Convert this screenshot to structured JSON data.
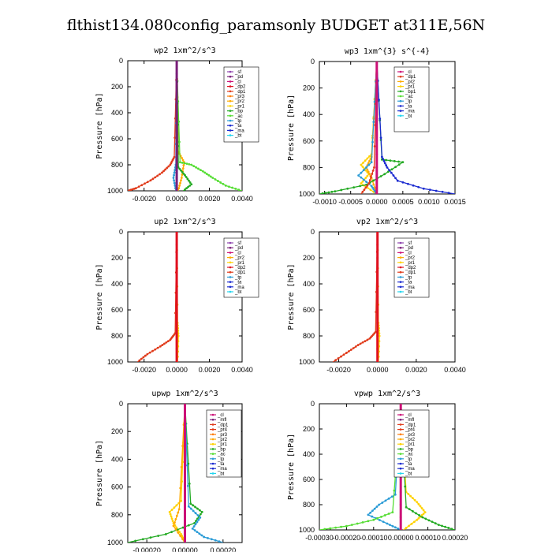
{
  "figure": {
    "title": "flthist134.080config_paramsonly  BUDGET at311E,56N"
  },
  "colors": {
    "sf": "#8e44ad",
    "pd": "#7a1f7a",
    "cl": "#cc1177",
    "mfl": "#7a1f7a",
    "dp2": "#e01020",
    "dp1": "#e03a1a",
    "pr4": "#e03a1a",
    "pr3": "#ff7a00",
    "pr2": "#ffaa00",
    "pr1": "#ffd200",
    "bp": "#22aa22",
    "bp1": "#22aa22",
    "ac": "#55dd33",
    "tp": "#2a9bd6",
    "ta": "#1a2ad0",
    "ma": "#1a2ad0",
    "bt": "#22d5ee"
  },
  "chart_data": [
    {
      "type": "line",
      "title": "wp2   1xm^2/s^3",
      "ylabel": "Pressure  [hPa]",
      "xlim": [
        -0.003,
        0.004
      ],
      "ylim": [
        1000,
        0
      ],
      "xticks": [
        "-0.0020",
        "0.0000",
        "0.0020",
        "0.0040"
      ],
      "yticks": [
        "0",
        "200",
        "400",
        "600",
        "800",
        "1000"
      ],
      "legend": [
        "_sf",
        "_pd",
        "_cl",
        "_dp2",
        "_dp1",
        "_pr3",
        "_pr2",
        "_pr1",
        "_bp",
        "_ac",
        "_tp",
        "_ta",
        "_ma",
        "_bt"
      ],
      "series": [
        {
          "name": "_dp1",
          "x": [
            0,
            -0.00015,
            -0.0004,
            -0.0009,
            -0.0016,
            -0.0025,
            -0.003
          ],
          "y": [
            0,
            740,
            800,
            860,
            920,
            980,
            1000
          ]
        },
        {
          "name": "_pr2",
          "x": [
            0,
            0.0001,
            0.00045,
            0.0003,
            8e-05
          ],
          "y": [
            0,
            700,
            780,
            900,
            1000
          ]
        },
        {
          "name": "_ac",
          "x": [
            0,
            0.0002,
            0.0009,
            0.0016,
            0.0022,
            0.003,
            0.004
          ],
          "y": [
            0,
            780,
            800,
            850,
            900,
            960,
            1000
          ]
        },
        {
          "name": "_bp",
          "x": [
            0,
            0.0001,
            0.0005,
            0.0009,
            0.0004
          ],
          "y": [
            0,
            820,
            880,
            950,
            1000
          ]
        },
        {
          "name": "_tp",
          "x": [
            0,
            -6e-05,
            -0.0002,
            -5e-05
          ],
          "y": [
            0,
            800,
            900,
            1000
          ]
        },
        {
          "name": "_pd",
          "x": [
            0,
            0,
            0
          ],
          "y": [
            0,
            500,
            1000
          ]
        }
      ]
    },
    {
      "type": "line",
      "title": "wp3   1xm^{3} s^{-4}",
      "ylabel": "Pressure  [hPa]",
      "xlim": [
        -0.0011,
        0.0015
      ],
      "ylim": [
        1000,
        0
      ],
      "xticks": [
        "-0.0010",
        "-0.0005",
        "0.0000",
        "0.0005",
        "0.0010",
        "0.0015"
      ],
      "yticks": [
        "0",
        "200",
        "400",
        "600",
        "800",
        "1000"
      ],
      "legend": [
        "_cl",
        "_dp1",
        "_pr2",
        "_pr1",
        "_bp1",
        "_ac",
        "_tp",
        "_ta",
        "_ma",
        "_bt"
      ],
      "series": [
        {
          "name": "_pr1",
          "x": [
            0,
            -0.0001,
            -0.0003,
            -0.00015,
            -0.0003,
            0
          ],
          "y": [
            0,
            700,
            780,
            850,
            920,
            1000
          ]
        },
        {
          "name": "_pr2",
          "x": [
            0,
            -0.0001,
            -0.0002,
            -0.0001,
            0
          ],
          "y": [
            0,
            720,
            800,
            880,
            1000
          ]
        },
        {
          "name": "_bp1",
          "x": [
            0,
            0.0001,
            0.0005,
            0.00015,
            -0.0002,
            -0.0008,
            -0.0011
          ],
          "y": [
            0,
            740,
            760,
            850,
            930,
            980,
            1000
          ]
        },
        {
          "name": "_ta",
          "x": [
            0,
            0.0001,
            0.0002,
            0.0004,
            0.0009,
            0.0015
          ],
          "y": [
            0,
            720,
            800,
            900,
            960,
            1000
          ]
        },
        {
          "name": "_tp",
          "x": [
            0,
            -0.0001,
            -0.00035,
            -0.0001,
            0
          ],
          "y": [
            0,
            760,
            860,
            940,
            1000
          ]
        },
        {
          "name": "_dp1",
          "x": [
            0,
            -5e-05,
            -0.00015,
            -0.0003
          ],
          "y": [
            0,
            800,
            920,
            1000
          ]
        },
        {
          "name": "_cl",
          "x": [
            0,
            0,
            0
          ],
          "y": [
            0,
            500,
            1000
          ]
        }
      ]
    },
    {
      "type": "line",
      "title": "up2   1xm^2/s^3",
      "ylabel": "Pressure  [hPa]",
      "xlim": [
        -0.003,
        0.004
      ],
      "ylim": [
        1000,
        0
      ],
      "xticks": [
        "-0.0020",
        "0.0000",
        "0.0020",
        "0.0040"
      ],
      "yticks": [
        "0",
        "200",
        "400",
        "600",
        "800",
        "1000"
      ],
      "legend": [
        "_sf",
        "_pd",
        "_cl",
        "_pr2",
        "_pr1",
        "_dp2",
        "_dp1",
        "_tp",
        "_ta",
        "_ma",
        "_bt"
      ],
      "series": [
        {
          "name": "_dp1",
          "x": [
            0,
            -0.0001,
            -0.0004,
            -0.001,
            -0.0018,
            -0.0024
          ],
          "y": [
            0,
            780,
            830,
            880,
            940,
            1000
          ]
        },
        {
          "name": "_pr1",
          "x": [
            0,
            5e-05,
            0.0001,
            5e-05
          ],
          "y": [
            0,
            700,
            800,
            1000
          ]
        },
        {
          "name": "_dp2",
          "x": [
            0,
            0,
            0
          ],
          "y": [
            0,
            500,
            1000
          ]
        }
      ]
    },
    {
      "type": "line",
      "title": "vp2   1xm^2/s^3",
      "ylabel": "Pressure  [hPa]",
      "xlim": [
        -0.003,
        0.004
      ],
      "ylim": [
        1000,
        0
      ],
      "xticks": [
        "-0.0020",
        "0.0000",
        "0.0020",
        "0.0040"
      ],
      "yticks": [
        "0",
        "200",
        "400",
        "600",
        "800",
        "1000"
      ],
      "legend": [
        "_sf",
        "_pd",
        "_cl",
        "_pr2",
        "_pr1",
        "_dp2",
        "_dp1",
        "_tp",
        "_ta",
        "_ma",
        "_bt"
      ],
      "series": [
        {
          "name": "_dp1",
          "x": [
            0,
            -0.0001,
            -0.0004,
            -0.001,
            -0.0016,
            -0.0023
          ],
          "y": [
            0,
            770,
            820,
            870,
            930,
            1000
          ]
        },
        {
          "name": "_pr1",
          "x": [
            0,
            5e-05,
            0.0001,
            5e-05
          ],
          "y": [
            0,
            700,
            800,
            1000
          ]
        },
        {
          "name": "_dp2",
          "x": [
            0,
            0,
            0
          ],
          "y": [
            0,
            500,
            1000
          ]
        }
      ]
    },
    {
      "type": "line",
      "title": "upwp   1xm^2/s^3",
      "ylabel": "Pressure  [hPa]",
      "xlim": [
        -0.0003,
        0.0003
      ],
      "ylim": [
        1000,
        0
      ],
      "xticks": [
        "-0.00020",
        "0.00000",
        "0.00020"
      ],
      "yticks": [
        "0",
        "200",
        "400",
        "600",
        "800",
        "1000"
      ],
      "legend": [
        "_cl",
        "_mfl",
        "_dp1",
        "_pr4",
        "_pr3",
        "_pr2",
        "_pr1",
        "_bp",
        "_ac",
        "_tp",
        "_ta",
        "_ma",
        "_bt"
      ],
      "series": [
        {
          "name": "_pr1",
          "x": [
            0,
            -2e-05,
            -8e-05,
            -6e-05,
            -2e-05,
            0
          ],
          "y": [
            0,
            700,
            780,
            860,
            940,
            1000
          ]
        },
        {
          "name": "_bp",
          "x": [
            0,
            3e-05,
            9e-05,
            5e-05,
            -0.0001,
            -0.0003
          ],
          "y": [
            0,
            720,
            780,
            860,
            940,
            1000
          ]
        },
        {
          "name": "_tp",
          "x": [
            0,
            2e-05,
            8e-05,
            4e-05,
            0.0001,
            0.0002
          ],
          "y": [
            0,
            740,
            820,
            900,
            960,
            1000
          ]
        },
        {
          "name": "_pr2",
          "x": [
            0,
            -3e-05,
            -6e-05,
            0
          ],
          "y": [
            0,
            760,
            880,
            1000
          ]
        },
        {
          "name": "_cl",
          "x": [
            0,
            0,
            0
          ],
          "y": [
            0,
            500,
            1000
          ]
        }
      ]
    },
    {
      "type": "line",
      "title": "vpwp   1xm^2/s^3",
      "ylabel": "Pressure  [hPa]",
      "xlim": [
        -0.0003,
        0.0002
      ],
      "ylim": [
        1000,
        0
      ],
      "xticks": [
        "-0.00030",
        "-0.00020",
        "-0.00010",
        "0.00000",
        "0.00010",
        "0.00020"
      ],
      "yticks": [
        "0",
        "200",
        "400",
        "600",
        "800",
        "1000"
      ],
      "legend": [
        "_cl",
        "_mfl",
        "_dp1",
        "_pr4",
        "_pr3",
        "_pr2",
        "_pr1",
        "_bp",
        "_ac",
        "_tp",
        "_ta",
        "_ma",
        "_bt"
      ],
      "series": [
        {
          "name": "_pr1",
          "x": [
            0,
            2e-05,
            6e-05,
            9e-05,
            6e-05,
            1e-05
          ],
          "y": [
            0,
            700,
            780,
            860,
            920,
            1000
          ]
        },
        {
          "name": "_tp",
          "x": [
            0,
            -2e-05,
            -8e-05,
            -0.00012,
            -5e-05,
            0
          ],
          "y": [
            0,
            720,
            800,
            880,
            950,
            1000
          ]
        },
        {
          "name": "_bp",
          "x": [
            0,
            2e-05,
            8e-05,
            0.00014,
            0.0002
          ],
          "y": [
            0,
            820,
            900,
            960,
            1000
          ]
        },
        {
          "name": "_ac",
          "x": [
            0,
            -3e-05,
            -0.0001,
            -0.0002,
            -0.0003
          ],
          "y": [
            0,
            860,
            920,
            970,
            1000
          ]
        },
        {
          "name": "_cl",
          "x": [
            0,
            0,
            0
          ],
          "y": [
            0,
            500,
            1000
          ]
        }
      ]
    }
  ]
}
